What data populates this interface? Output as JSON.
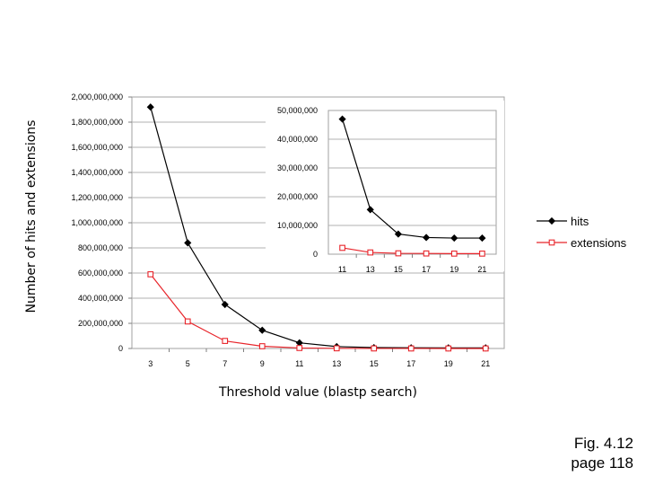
{
  "chart_data": [
    {
      "type": "line",
      "x": [
        3,
        5,
        7,
        9,
        11,
        13,
        15,
        17,
        19,
        21
      ],
      "xticks": [
        "3",
        "5",
        "7",
        "9",
        "11",
        "13",
        "15",
        "17",
        "19",
        "21"
      ],
      "yticks": [
        "0",
        "200,000,000",
        "400,000,000",
        "600,000,000",
        "800,000,000",
        "1,000,000,000",
        "1,200,000,000",
        "1,400,000,000",
        "1,600,000,000",
        "1,800,000,000",
        "2,000,000,000"
      ],
      "ylim": [
        0,
        2000000000
      ],
      "xlabel": "Threshold value (blastp search)",
      "ylabel": "Number of hits and extensions",
      "grid": true,
      "series": [
        {
          "name": "hits",
          "color": "#000000",
          "marker": "diamond",
          "values": [
            1920000000,
            840000000,
            350000000,
            145000000,
            45000000,
            15000000,
            7000000,
            5500000,
            5000000,
            5000000
          ]
        },
        {
          "name": "extensions",
          "color": "#e8252b",
          "marker": "square",
          "values": [
            590000000,
            215000000,
            60000000,
            18000000,
            4000000,
            1500000,
            500000,
            300000,
            200000,
            200000
          ]
        }
      ]
    },
    {
      "type": "line",
      "x": [
        11,
        13,
        15,
        17,
        19,
        21
      ],
      "xticks": [
        "11",
        "13",
        "15",
        "17",
        "19",
        "21"
      ],
      "yticks": [
        "0",
        "10,000,000",
        "20,000,000",
        "30,000,000",
        "40,000,000",
        "50,000,000"
      ],
      "ylim": [
        0,
        50000000
      ],
      "grid": true,
      "series": [
        {
          "name": "hits",
          "color": "#000000",
          "marker": "diamond",
          "values": [
            47000000,
            15500000,
            7000000,
            5800000,
            5600000,
            5600000
          ]
        },
        {
          "name": "extensions",
          "color": "#e8252b",
          "marker": "square",
          "values": [
            2200000,
            600000,
            300000,
            250000,
            200000,
            200000
          ]
        }
      ]
    }
  ],
  "legend": {
    "position": "right",
    "items": [
      {
        "label": "hits",
        "color": "#000000",
        "marker": "diamond"
      },
      {
        "label": "extensions",
        "color": "#e8252b",
        "marker": "square"
      }
    ]
  },
  "caption": {
    "line1": "Fig. 4.12",
    "line2": "page 118"
  }
}
